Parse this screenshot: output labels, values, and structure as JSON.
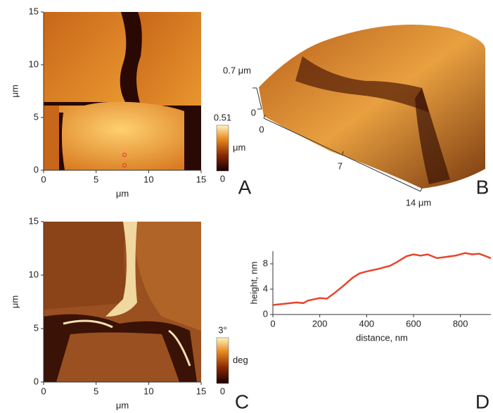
{
  "chart_data": [
    {
      "type": "image",
      "panel": "A",
      "xlabel": "μm",
      "ylabel": "μm",
      "xlim": [
        0,
        15
      ],
      "xticks": [
        0,
        5,
        10,
        15
      ],
      "ylim": [
        0,
        15
      ],
      "yticks": [
        0,
        5,
        10,
        15
      ],
      "colorbar": {
        "lim": [
          0,
          0.51
        ],
        "ticks": [
          0,
          0.51
        ],
        "label": "μm"
      }
    },
    {
      "type": "surface3d",
      "panel": "B",
      "zlim": [
        0,
        0.7
      ],
      "zticks": [
        0,
        {
          "value": 0.7,
          "label": "0.7 μm"
        }
      ],
      "xlim": [
        0,
        14
      ],
      "xticks": [
        0,
        7,
        {
          "value": 14,
          "label": "14 μm"
        }
      ]
    },
    {
      "type": "image",
      "panel": "C",
      "xlabel": "μm",
      "ylabel": "μm",
      "xlim": [
        0,
        15
      ],
      "xticks": [
        0,
        5,
        10,
        15
      ],
      "ylim": [
        0,
        15
      ],
      "yticks": [
        0,
        5,
        10,
        15
      ],
      "colorbar": {
        "lim": [
          0,
          3
        ],
        "ticks": [
          0,
          {
            "value": 3,
            "label": "3°"
          }
        ],
        "label": "deg"
      }
    },
    {
      "type": "line",
      "panel": "D",
      "xlabel": "distance, nm",
      "ylabel": "height, nm",
      "color": "#e8452c",
      "x": [
        0,
        50,
        100,
        130,
        150,
        200,
        230,
        260,
        300,
        340,
        370,
        400,
        450,
        500,
        530,
        570,
        600,
        630,
        660,
        700,
        740,
        780,
        820,
        850,
        880,
        930
      ],
      "values": [
        1.5,
        1.7,
        1.9,
        1.8,
        2.2,
        2.6,
        2.5,
        3.3,
        4.5,
        5.8,
        6.5,
        6.8,
        7.2,
        7.7,
        8.3,
        9.2,
        9.5,
        9.3,
        9.5,
        8.9,
        9.1,
        9.3,
        9.7,
        9.5,
        9.6,
        8.9
      ],
      "xlim": [
        0,
        930
      ],
      "xticks": [
        0,
        200,
        400,
        600,
        800
      ],
      "ylim": [
        0,
        10
      ],
      "yticks": [
        0,
        4,
        8
      ]
    }
  ]
}
